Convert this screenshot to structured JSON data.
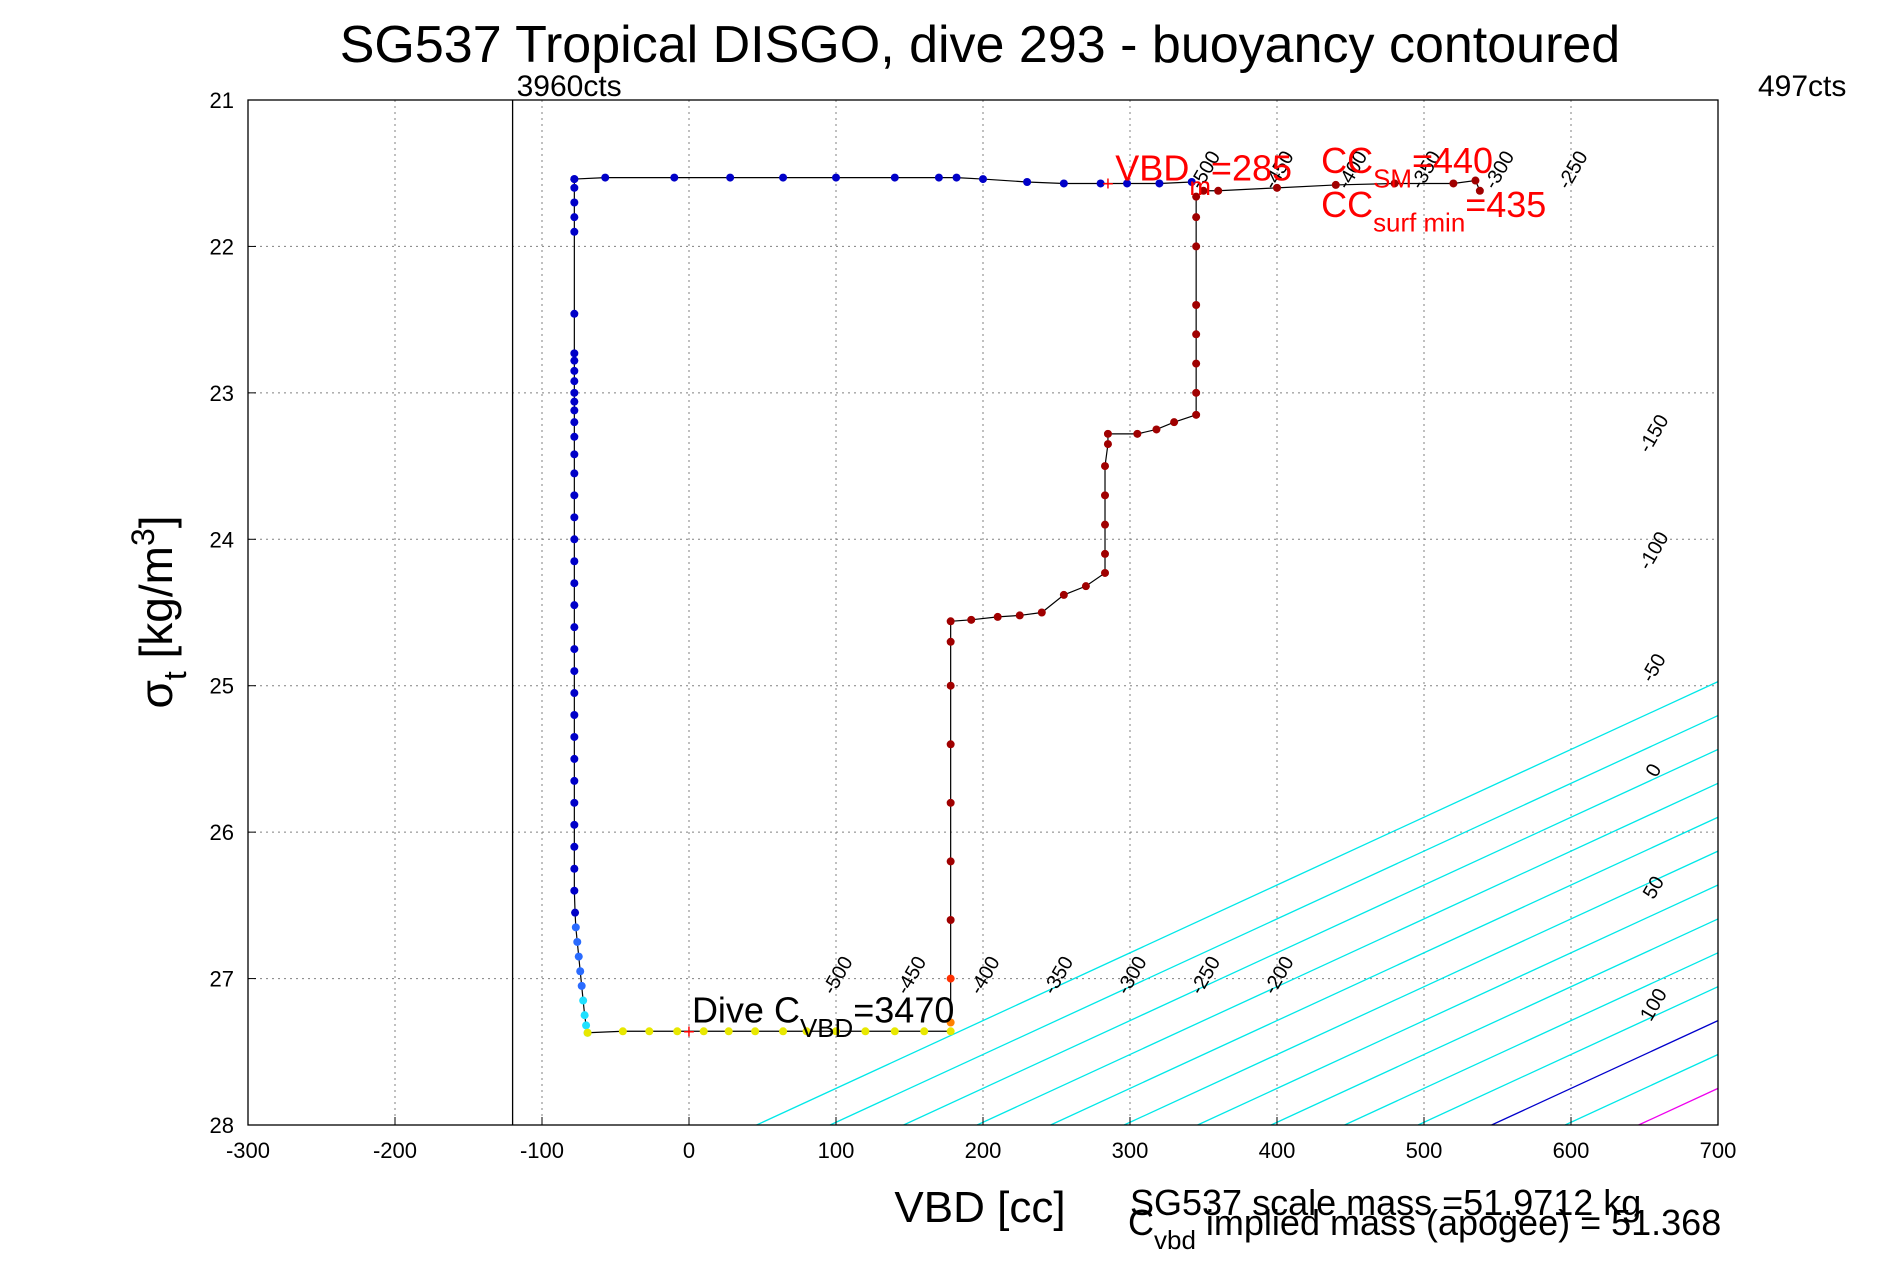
{
  "chart_data": {
    "type": "scatter",
    "title": "SG537 Tropical DISGO, dive 293 - buoyancy contoured",
    "xlabel": "VBD [cc]",
    "ylabel": {
      "sym": "σ",
      "sub": "t",
      "unit": "[kg/m",
      "sup": "3",
      "close": "]"
    },
    "xlim": [
      -300,
      700
    ],
    "ylim": [
      21,
      28
    ],
    "y_reversed": true,
    "grid": true,
    "xticks": [
      "-300",
      "-200",
      "-100",
      "0",
      "100",
      "200",
      "300",
      "400",
      "500",
      "600",
      "700"
    ],
    "yticks": [
      "21",
      "22",
      "23",
      "24",
      "25",
      "26",
      "27",
      "28"
    ],
    "counts_left": "3960cts",
    "counts_right": "497cts",
    "counts_line_x": -120,
    "contours": [
      {
        "label": "-500",
        "b": -500,
        "x_bottom": 46,
        "color": "#00e8e8"
      },
      {
        "label": "-450",
        "b": -450,
        "x_bottom": 96,
        "color": "#00e8e8"
      },
      {
        "label": "-400",
        "b": -400,
        "x_bottom": 146,
        "color": "#00e8e8"
      },
      {
        "label": "-350",
        "b": -350,
        "x_bottom": 196,
        "color": "#00e8e8"
      },
      {
        "label": "-300",
        "b": -300,
        "x_bottom": 246,
        "color": "#00e8e8"
      },
      {
        "label": "-250",
        "b": -250,
        "x_bottom": 296,
        "color": "#00e8e8"
      },
      {
        "label": "-200",
        "b": -200,
        "x_bottom": 346,
        "color": "#00e8e8"
      },
      {
        "label": "-150",
        "b": -150,
        "x_bottom": 396,
        "color": "#00e8e8"
      },
      {
        "label": "-100",
        "b": -100,
        "x_bottom": 446,
        "color": "#00e8e8"
      },
      {
        "label": "-50",
        "b": -50,
        "x_bottom": 496,
        "color": "#00e8e8"
      },
      {
        "label": "0",
        "b": 0,
        "x_bottom": 546,
        "color": "#0000cc"
      },
      {
        "label": "50",
        "b": 50,
        "x_bottom": 596,
        "color": "#00e8e8"
      },
      {
        "label": "100",
        "b": 100,
        "x_bottom": 646,
        "color": "#ee00ee"
      }
    ],
    "contour_slope_cc_per_sigma": 216,
    "contour_label_positions": [
      {
        "x": 105,
        "y": 27.0
      },
      {
        "x": 155,
        "y": 27.0
      },
      {
        "x": 205,
        "y": 27.0
      },
      {
        "x": 255,
        "y": 27.0
      },
      {
        "x": 305,
        "y": 27.0
      },
      {
        "x": 355,
        "y": 27.0
      },
      {
        "x": 405,
        "y": 27.0
      },
      {
        "x": 355,
        "y": 21.5
      },
      {
        "x": 405,
        "y": 21.5
      },
      {
        "x": 455,
        "y": 21.5
      },
      {
        "x": 505,
        "y": 21.5
      },
      {
        "x": 555,
        "y": 21.5
      },
      {
        "x": 605,
        "y": 21.5
      },
      {
        "x": 660,
        "y": 23.3
      },
      {
        "x": 660,
        "y": 24.1
      },
      {
        "x": 660,
        "y": 24.9
      },
      {
        "x": 660,
        "y": 25.6
      },
      {
        "x": 660,
        "y": 26.4
      },
      {
        "x": 660,
        "y": 27.2
      }
    ],
    "contour_label_texts": [
      "-500",
      "-450",
      "-400",
      "-350",
      "-300",
      "-250",
      "-200",
      "-500",
      "-450",
      "-400",
      "-350",
      "-300",
      "-250",
      "-150",
      "-100",
      "-50",
      "0",
      "50",
      "100"
    ],
    "series": [
      {
        "name": "dive",
        "color": "#0000c8",
        "points": [
          [
            -78,
            21.54
          ],
          [
            -78,
            21.6
          ],
          [
            -78,
            21.7
          ],
          [
            -78,
            21.8
          ],
          [
            -78,
            21.9
          ],
          [
            -78,
            22.46
          ],
          [
            -78,
            22.73
          ],
          [
            -78,
            22.78
          ],
          [
            -78,
            22.85
          ],
          [
            -78,
            22.92
          ],
          [
            -78,
            23.0
          ],
          [
            -78,
            23.06
          ],
          [
            -78,
            23.12
          ],
          [
            -78,
            23.2
          ],
          [
            -78,
            23.3
          ],
          [
            -78,
            23.42
          ],
          [
            -78,
            23.55
          ],
          [
            -78,
            23.7
          ],
          [
            -78,
            23.85
          ],
          [
            -78,
            24.0
          ],
          [
            -78,
            24.15
          ],
          [
            -78,
            24.3
          ],
          [
            -78,
            24.45
          ],
          [
            -78,
            24.6
          ],
          [
            -78,
            24.75
          ],
          [
            -78,
            24.9
          ],
          [
            -78,
            25.05
          ],
          [
            -78,
            25.2
          ],
          [
            -78,
            25.35
          ],
          [
            -78,
            25.5
          ],
          [
            -78,
            25.65
          ],
          [
            -78,
            25.8
          ],
          [
            -78,
            25.95
          ],
          [
            -78,
            26.1
          ],
          [
            -78,
            26.25
          ],
          [
            -78,
            26.4
          ],
          [
            -77.5,
            26.55
          ],
          [
            -77,
            26.65
          ],
          [
            -76,
            26.75
          ],
          [
            -75,
            26.85
          ],
          [
            -74,
            26.95
          ],
          [
            -73,
            27.05
          ],
          [
            -72,
            27.15
          ],
          [
            -71,
            27.25
          ],
          [
            -70,
            27.32
          ],
          [
            -69,
            27.37
          ]
        ]
      },
      {
        "name": "bottom",
        "color": "#e8e800",
        "points": [
          [
            -69,
            27.37
          ],
          [
            -45,
            27.36
          ],
          [
            -27,
            27.36
          ],
          [
            -8,
            27.36
          ],
          [
            10,
            27.36
          ],
          [
            27,
            27.36
          ],
          [
            45,
            27.36
          ],
          [
            64,
            27.36
          ],
          [
            80,
            27.36
          ],
          [
            100,
            27.36
          ],
          [
            120,
            27.36
          ],
          [
            140,
            27.36
          ],
          [
            160,
            27.36
          ],
          [
            178,
            27.36
          ]
        ]
      },
      {
        "name": "climb",
        "color": "#a00000",
        "points": [
          [
            178,
            27.3
          ],
          [
            178,
            27.0
          ],
          [
            178,
            26.6
          ],
          [
            178,
            26.2
          ],
          [
            178,
            25.8
          ],
          [
            178,
            25.4
          ],
          [
            178,
            25.0
          ],
          [
            178,
            24.7
          ],
          [
            178,
            24.56
          ],
          [
            192,
            24.55
          ],
          [
            210,
            24.53
          ],
          [
            225,
            24.52
          ],
          [
            240,
            24.5
          ],
          [
            255,
            24.38
          ],
          [
            270,
            24.32
          ],
          [
            283,
            24.23
          ],
          [
            283,
            24.1
          ],
          [
            283,
            23.9
          ],
          [
            283,
            23.7
          ],
          [
            283,
            23.5
          ],
          [
            285,
            23.35
          ],
          [
            285,
            23.28
          ],
          [
            305,
            23.28
          ],
          [
            318,
            23.25
          ],
          [
            330,
            23.2
          ],
          [
            345,
            23.15
          ],
          [
            345,
            23.0
          ],
          [
            345,
            22.8
          ],
          [
            345,
            22.6
          ],
          [
            345,
            22.4
          ],
          [
            345,
            22.0
          ],
          [
            345,
            21.8
          ],
          [
            345,
            21.66
          ],
          [
            350,
            21.62
          ],
          [
            360,
            21.62
          ],
          [
            400,
            21.6
          ],
          [
            440,
            21.58
          ],
          [
            480,
            21.57
          ],
          [
            520,
            21.57
          ],
          [
            535,
            21.55
          ],
          [
            538,
            21.62
          ]
        ]
      },
      {
        "name": "surface",
        "color": "#0000c8",
        "points": [
          [
            -78,
            21.54
          ],
          [
            -57,
            21.53
          ],
          [
            -10,
            21.53
          ],
          [
            28,
            21.53
          ],
          [
            64,
            21.53
          ],
          [
            100,
            21.53
          ],
          [
            140,
            21.53
          ],
          [
            170,
            21.53
          ],
          [
            182,
            21.53
          ],
          [
            200,
            21.54
          ],
          [
            230,
            21.56
          ],
          [
            255,
            21.57
          ],
          [
            280,
            21.57
          ],
          [
            298,
            21.57
          ],
          [
            320,
            21.57
          ],
          [
            342,
            21.56
          ]
        ]
      }
    ],
    "annotations": {
      "dive_c_vbd": {
        "label": "Dive C",
        "sub": "VBD",
        "value": "=3470",
        "x": 2,
        "y": 27.3
      },
      "vbd_m": {
        "label": "VBD",
        "sub": "m",
        "value": "=285",
        "x": 290,
        "y": 21.55
      },
      "cc_sm": {
        "label": "CC",
        "sub": "SM",
        "value": "=440",
        "x": 430,
        "y": 21.5
      },
      "cc_surf": {
        "label": "CC",
        "sub": "surf min",
        "value": "=435",
        "x": 430,
        "y": 21.8
      }
    },
    "footer_mass": "SG537 scale mass =51.9712 kg",
    "footer_cvbd": {
      "label": "C",
      "sub": "vbd",
      "text": " implied mass (apogee) = 51.368"
    },
    "colors": {
      "axis": "#000000",
      "grid": "#808080",
      "annotation": "#ff0000",
      "marker_plus": "#ff0000"
    }
  }
}
